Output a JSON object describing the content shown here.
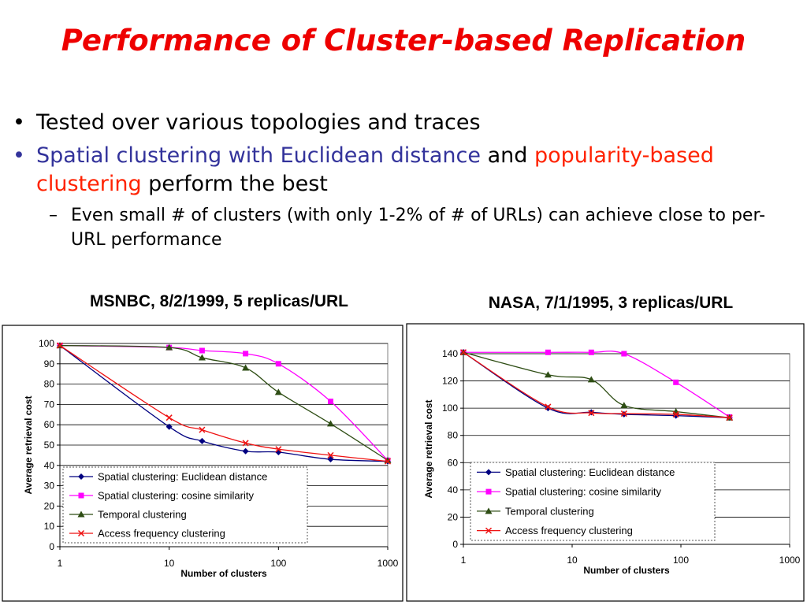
{
  "slide": {
    "title": "Performance of Cluster-based Replication",
    "bullet1": "Tested over various topologies and traces",
    "bullet2_part1": "Spatial clustering with Euclidean distance",
    "bullet2_and": " and ",
    "bullet2_part2": "popularity-based clustering",
    "bullet2_part3": " perform the best",
    "sub_bullet": "Even small # of clusters (with only 1-2% of # of URLs) can achieve close to per-URL performance",
    "bullet_glyph": "•",
    "dash_glyph": "–"
  },
  "colors": {
    "title": "#ee0000",
    "blue_text": "#33339b",
    "red_text": "#ff2200",
    "series": [
      "#000080",
      "#ff00ff",
      "#2e4d14",
      "#ee1111"
    ]
  },
  "chart_data": [
    {
      "type": "line",
      "title": "MSNBC, 8/2/1999, 5 replicas/URL",
      "xlabel": "Number of clusters",
      "ylabel": "Average retrieval cost",
      "xscale": "log",
      "xlim": [
        1,
        1000
      ],
      "ylim": [
        0,
        100
      ],
      "xticks": [
        1,
        10,
        100,
        1000
      ],
      "yticks": [
        0,
        10,
        20,
        30,
        40,
        50,
        60,
        70,
        80,
        90,
        100
      ],
      "grid": "horizontal",
      "legend_position": "bottom-left",
      "series": [
        {
          "name": "Spatial clustering: Euclidean distance",
          "marker": "diamond",
          "x": [
            1,
            10,
            20,
            50,
            100,
            300,
            1000
          ],
          "y": [
            99,
            59,
            52,
            47,
            46.5,
            43,
            42
          ]
        },
        {
          "name": "Spatial clustering: cosine similarity",
          "marker": "square",
          "x": [
            1,
            10,
            20,
            50,
            100,
            300,
            1000
          ],
          "y": [
            99,
            98,
            96.5,
            95,
            90,
            71.5,
            42.5
          ]
        },
        {
          "name": "Temporal clustering",
          "marker": "triangle",
          "x": [
            1,
            10,
            20,
            50,
            100,
            300,
            1000
          ],
          "y": [
            99,
            98,
            93,
            88,
            76,
            60.5,
            42.5
          ]
        },
        {
          "name": "Access frequency clustering",
          "marker": "x",
          "x": [
            1,
            10,
            20,
            50,
            100,
            300,
            1000
          ],
          "y": [
            99,
            63.5,
            57.5,
            51,
            48,
            45,
            42
          ]
        }
      ]
    },
    {
      "type": "line",
      "title": "NASA, 7/1/1995, 3 replicas/URL",
      "xlabel": "Number of clusters",
      "ylabel": "Average retrieval cost",
      "xscale": "log",
      "xlim": [
        1,
        1000
      ],
      "ylim": [
        0,
        140
      ],
      "xticks": [
        1,
        10,
        100,
        1000
      ],
      "yticks": [
        0,
        20,
        40,
        60,
        80,
        100,
        120,
        140
      ],
      "grid": "horizontal",
      "legend_position": "bottom-left",
      "series": [
        {
          "name": "Spatial clustering: Euclidean distance",
          "marker": "diamond",
          "x": [
            1,
            6,
            15,
            30,
            90,
            280
          ],
          "y": [
            141,
            100,
            97,
            95.5,
            94.5,
            93
          ]
        },
        {
          "name": "Spatial clustering: cosine similarity",
          "marker": "square",
          "x": [
            1,
            6,
            15,
            30,
            90,
            280
          ],
          "y": [
            141,
            141,
            141,
            140,
            119,
            93.5
          ]
        },
        {
          "name": "Temporal clustering",
          "marker": "triangle",
          "x": [
            1,
            6,
            15,
            30,
            90,
            280
          ],
          "y": [
            141,
            124.5,
            121,
            102,
            97.5,
            93
          ]
        },
        {
          "name": "Access frequency clustering",
          "marker": "x",
          "x": [
            1,
            6,
            15,
            30,
            90,
            280
          ],
          "y": [
            141,
            101,
            96.5,
            96,
            95.5,
            93
          ]
        }
      ]
    }
  ]
}
